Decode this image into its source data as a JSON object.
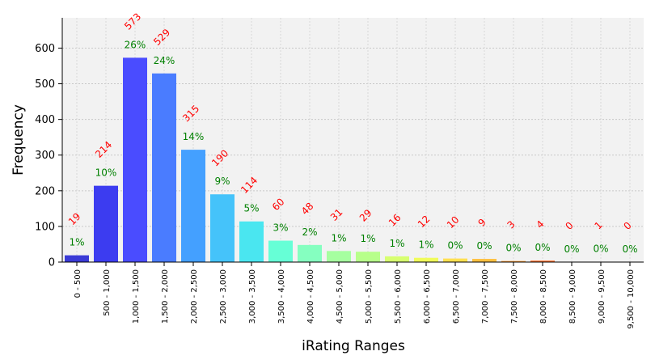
{
  "chart_data": {
    "type": "bar",
    "title": "",
    "xlabel": "iRating Ranges",
    "ylabel": "Frequency",
    "ylim": [
      0,
      685
    ],
    "yticks": [
      0,
      100,
      200,
      300,
      400,
      500,
      600
    ],
    "grid": true,
    "categories": [
      "0 - 500",
      "500 - 1,000",
      "1,000 - 1,500",
      "1,500 - 2,000",
      "2,000 - 2,500",
      "2,500 - 3,000",
      "3,000 - 3,500",
      "3,500 - 4,000",
      "4,000 - 4,500",
      "4,500 - 5,000",
      "5,000 - 5,500",
      "5,500 - 6,000",
      "6,000 - 6,500",
      "6,500 - 7,000",
      "7,000 - 7,500",
      "7,500 - 8,000",
      "8,000 - 8,500",
      "8,500 - 9,000",
      "9,000 - 9,500",
      "9,500 - 10,000"
    ],
    "values": [
      19,
      214,
      573,
      529,
      315,
      190,
      114,
      60,
      48,
      31,
      29,
      16,
      12,
      10,
      9,
      3,
      4,
      0,
      1,
      0
    ],
    "percent_labels": [
      "1%",
      "10%",
      "26%",
      "24%",
      "14%",
      "9%",
      "5%",
      "3%",
      "2%",
      "1%",
      "1%",
      "1%",
      "1%",
      "0%",
      "0%",
      "0%",
      "0%",
      "0%",
      "0%",
      "0%"
    ],
    "bar_colors": [
      "#3a3ad6",
      "#3c3cf0",
      "#4a4cff",
      "#4a7cff",
      "#44a0ff",
      "#45c3fa",
      "#4ae6f0",
      "#66ffd6",
      "#85ffc0",
      "#a6ffa0",
      "#b7ff8a",
      "#d7ff70",
      "#f0fc5a",
      "#ffe050",
      "#ffc040",
      "#ff9a30",
      "#ff6a24",
      "#ff3a20",
      "#e82a1c",
      "#c8181c"
    ],
    "count_label_color": "#ff0000",
    "percent_label_color": "#008000",
    "plot_background": "#f2f2f2"
  }
}
